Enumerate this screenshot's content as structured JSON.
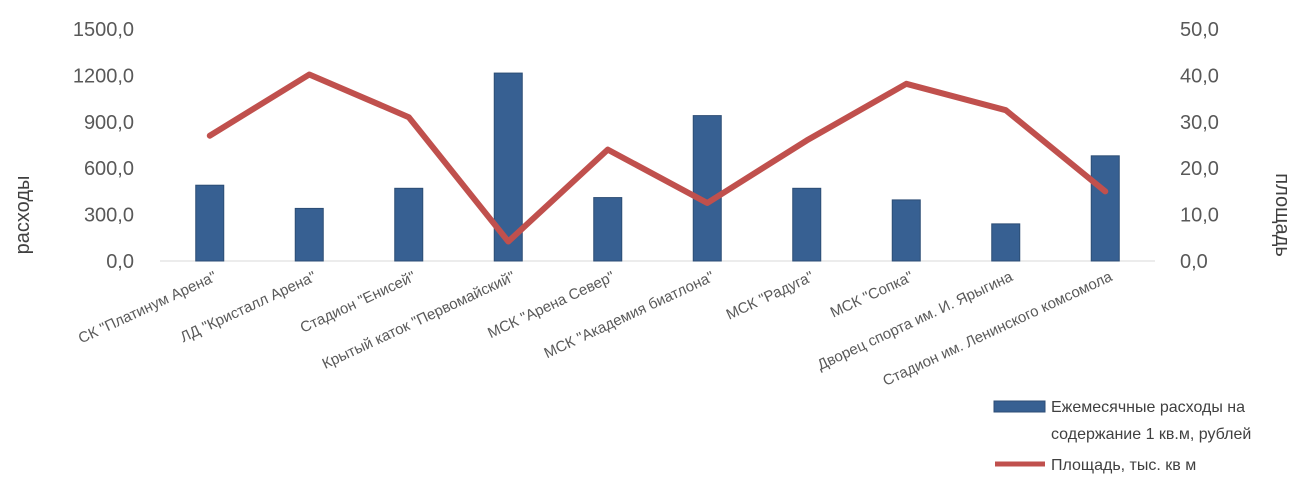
{
  "chart_data": {
    "type": "bar",
    "categories": [
      "СК \"Платинум Арена\"",
      "ЛД \"Кристалл Арена\"",
      "Стадион \"Енисей\"",
      "Крытый каток \"Первомайский\"",
      "МСК \"Арена Север\"",
      "МСК \"Академия биатлона\"",
      "МСК \"Радуга\"",
      "МСК \"Сопка\"",
      "Дворец спорта им. И. Ярыгина",
      "Стадион им. Ленинского комсомола"
    ],
    "series": [
      {
        "name": "Ежемесячные расходы на содержание 1 кв.м, рублей",
        "type": "bar",
        "axis": "left",
        "color": "#376092",
        "values": [
          490,
          340,
          470,
          1215,
          410,
          940,
          470,
          395,
          240,
          680
        ]
      },
      {
        "name": "Площадь, тыс. кв м",
        "type": "line",
        "axis": "right",
        "color": "#C0504D",
        "values": [
          27.0,
          40.2,
          31.0,
          4.2,
          24.0,
          12.5,
          26.0,
          38.2,
          32.5,
          15.0
        ]
      }
    ],
    "ylabel": "расходы",
    "y2label": "площадь",
    "ylim": [
      0,
      1500
    ],
    "y2lim": [
      0,
      50
    ],
    "yticks": [
      "0,0",
      "300,0",
      "600,0",
      "900,0",
      "1200,0",
      "1500,0"
    ],
    "y2ticks": [
      "0,0",
      "10,0",
      "20,0",
      "30,0",
      "40,0",
      "50,0"
    ],
    "grid": false,
    "legend": "bottom-right"
  }
}
